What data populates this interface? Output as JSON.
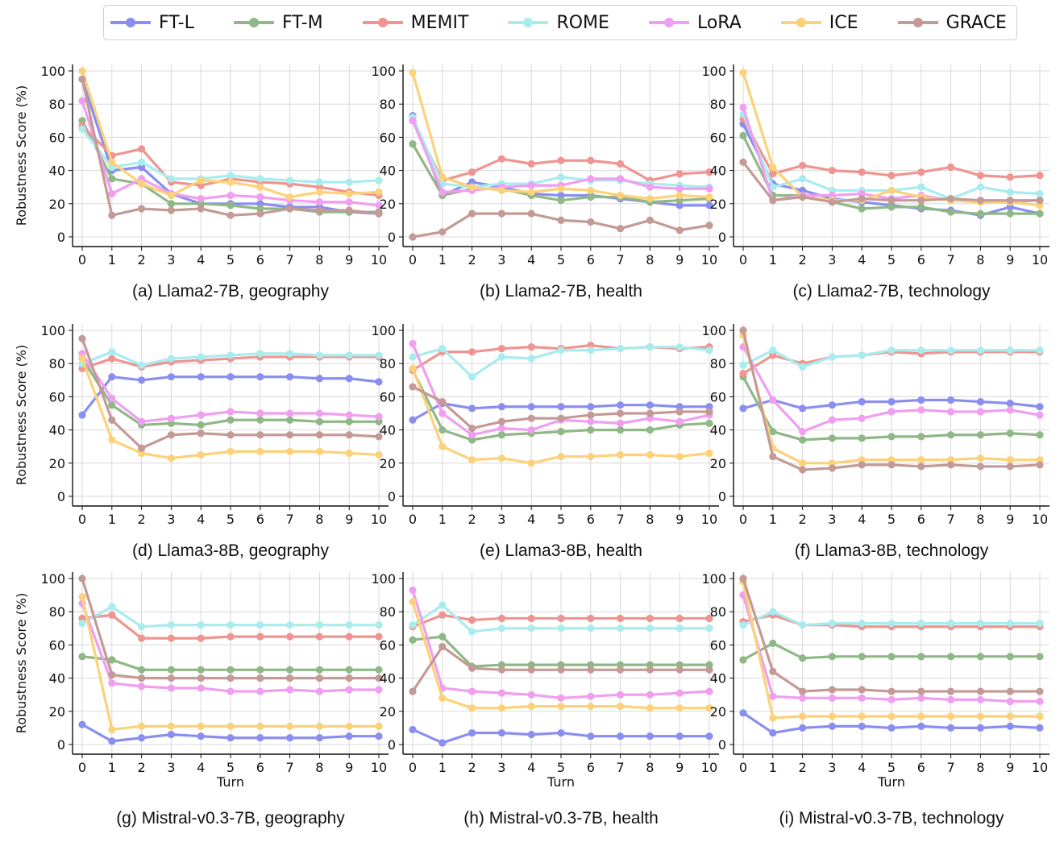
{
  "legend": [
    {
      "name": "FT-L",
      "color": "#8a8ef0"
    },
    {
      "name": "FT-M",
      "color": "#8fb886"
    },
    {
      "name": "MEMIT",
      "color": "#ef9490"
    },
    {
      "name": "ROME",
      "color": "#a8ecee"
    },
    {
      "name": "LoRA",
      "color": "#f09ef0"
    },
    {
      "name": "ICE",
      "color": "#fbd27a"
    },
    {
      "name": "GRACE",
      "color": "#c49a96"
    }
  ],
  "chart_data": [
    {
      "type": "line",
      "title": "(a) Llama2-7B, geography",
      "xlabel": "",
      "ylabel": "Robustness Score (%)",
      "x": [
        0,
        1,
        2,
        3,
        4,
        5,
        6,
        7,
        8,
        9,
        10
      ],
      "ylim": [
        0,
        100
      ],
      "series": [
        {
          "name": "FT-L",
          "values": [
            95,
            40,
            42,
            26,
            20,
            20,
            20,
            18,
            18,
            15,
            14
          ]
        },
        {
          "name": "FT-M",
          "values": [
            70,
            35,
            32,
            20,
            20,
            19,
            17,
            17,
            15,
            15,
            15
          ]
        },
        {
          "name": "MEMIT",
          "values": [
            67,
            49,
            53,
            33,
            31,
            35,
            33,
            32,
            30,
            27,
            25
          ]
        },
        {
          "name": "ROME",
          "values": [
            65,
            42,
            45,
            35,
            35,
            37,
            35,
            34,
            33,
            33,
            34
          ]
        },
        {
          "name": "LoRA",
          "values": [
            82,
            26,
            35,
            26,
            23,
            25,
            24,
            22,
            21,
            21,
            19
          ]
        },
        {
          "name": "ICE",
          "values": [
            100,
            45,
            32,
            25,
            34,
            33,
            30,
            24,
            27,
            26,
            27
          ]
        },
        {
          "name": "GRACE",
          "values": [
            95,
            13,
            17,
            16,
            17,
            13,
            14,
            17,
            16,
            16,
            14
          ]
        }
      ]
    },
    {
      "type": "line",
      "title": "(b) Llama2-7B, health",
      "xlabel": "",
      "ylabel": "",
      "x": [
        0,
        1,
        2,
        3,
        4,
        5,
        6,
        7,
        8,
        9,
        10
      ],
      "ylim": [
        0,
        100
      ],
      "series": [
        {
          "name": "FT-L",
          "values": [
            73,
            25,
            33,
            30,
            26,
            25,
            25,
            23,
            21,
            19,
            19
          ]
        },
        {
          "name": "FT-M",
          "values": [
            56,
            25,
            29,
            29,
            25,
            22,
            24,
            24,
            21,
            22,
            23
          ]
        },
        {
          "name": "MEMIT",
          "values": [
            70,
            34,
            39,
            47,
            44,
            46,
            46,
            44,
            34,
            38,
            39
          ]
        },
        {
          "name": "ROME",
          "values": [
            72,
            32,
            30,
            32,
            32,
            36,
            34,
            34,
            32,
            31,
            30
          ]
        },
        {
          "name": "LoRA",
          "values": [
            70,
            27,
            28,
            30,
            31,
            31,
            35,
            35,
            30,
            29,
            29
          ]
        },
        {
          "name": "ICE",
          "values": [
            99,
            36,
            30,
            28,
            27,
            29,
            28,
            25,
            23,
            25,
            24
          ]
        },
        {
          "name": "GRACE",
          "values": [
            0,
            3,
            14,
            14,
            14,
            10,
            9,
            5,
            10,
            4,
            7
          ]
        }
      ]
    },
    {
      "type": "line",
      "title": "(c) Llama2-7B, technology",
      "xlabel": "",
      "ylabel": "",
      "x": [
        0,
        1,
        2,
        3,
        4,
        5,
        6,
        7,
        8,
        9,
        10
      ],
      "ylim": [
        0,
        100
      ],
      "series": [
        {
          "name": "FT-L",
          "values": [
            68,
            32,
            28,
            23,
            21,
            19,
            17,
            16,
            13,
            18,
            14
          ]
        },
        {
          "name": "FT-M",
          "values": [
            61,
            25,
            25,
            21,
            17,
            18,
            18,
            15,
            14,
            14,
            14
          ]
        },
        {
          "name": "MEMIT",
          "values": [
            71,
            38,
            43,
            40,
            39,
            37,
            39,
            42,
            37,
            36,
            37
          ]
        },
        {
          "name": "ROME",
          "values": [
            74,
            30,
            35,
            28,
            28,
            28,
            30,
            23,
            30,
            27,
            26
          ]
        },
        {
          "name": "LoRA",
          "values": [
            78,
            22,
            25,
            25,
            26,
            23,
            25,
            22,
            21,
            21,
            22
          ]
        },
        {
          "name": "ICE",
          "values": [
            99,
            42,
            24,
            22,
            22,
            28,
            24,
            22,
            21,
            21,
            19
          ]
        },
        {
          "name": "GRACE",
          "values": [
            45,
            22,
            24,
            21,
            23,
            22,
            22,
            23,
            22,
            22,
            22
          ]
        }
      ]
    },
    {
      "type": "line",
      "title": "(d) Llama3-8B, geography",
      "xlabel": "",
      "ylabel": "Robustness Score (%)",
      "x": [
        0,
        1,
        2,
        3,
        4,
        5,
        6,
        7,
        8,
        9,
        10
      ],
      "ylim": [
        0,
        100
      ],
      "series": [
        {
          "name": "FT-L",
          "values": [
            49,
            72,
            70,
            72,
            72,
            72,
            72,
            72,
            71,
            71,
            69
          ]
        },
        {
          "name": "FT-M",
          "values": [
            83,
            55,
            43,
            44,
            43,
            46,
            46,
            46,
            45,
            45,
            45
          ]
        },
        {
          "name": "MEMIT",
          "values": [
            77,
            83,
            78,
            81,
            82,
            83,
            84,
            84,
            84,
            84,
            84
          ]
        },
        {
          "name": "ROME",
          "values": [
            80,
            87,
            79,
            83,
            84,
            85,
            86,
            86,
            85,
            85,
            85
          ]
        },
        {
          "name": "LoRA",
          "values": [
            86,
            59,
            45,
            47,
            49,
            51,
            50,
            50,
            50,
            49,
            48
          ]
        },
        {
          "name": "ICE",
          "values": [
            83,
            34,
            26,
            23,
            25,
            27,
            27,
            27,
            27,
            26,
            25
          ]
        },
        {
          "name": "GRACE",
          "values": [
            95,
            46,
            29,
            37,
            38,
            37,
            37,
            37,
            37,
            37,
            36
          ]
        }
      ]
    },
    {
      "type": "line",
      "title": "(e) Llama3-8B, health",
      "xlabel": "",
      "ylabel": "",
      "x": [
        0,
        1,
        2,
        3,
        4,
        5,
        6,
        7,
        8,
        9,
        10
      ],
      "ylim": [
        0,
        100
      ],
      "series": [
        {
          "name": "FT-L",
          "values": [
            46,
            56,
            53,
            54,
            54,
            54,
            54,
            55,
            55,
            54,
            54
          ]
        },
        {
          "name": "FT-M",
          "values": [
            76,
            40,
            34,
            37,
            38,
            39,
            40,
            40,
            40,
            43,
            44
          ]
        },
        {
          "name": "MEMIT",
          "values": [
            76,
            87,
            87,
            89,
            90,
            89,
            91,
            89,
            90,
            89,
            90
          ]
        },
        {
          "name": "ROME",
          "values": [
            84,
            89,
            72,
            84,
            83,
            88,
            88,
            89,
            90,
            90,
            88
          ]
        },
        {
          "name": "LoRA",
          "values": [
            92,
            50,
            37,
            41,
            40,
            46,
            45,
            44,
            47,
            45,
            49
          ]
        },
        {
          "name": "ICE",
          "values": [
            77,
            30,
            22,
            23,
            20,
            24,
            24,
            25,
            25,
            24,
            26
          ]
        },
        {
          "name": "GRACE",
          "values": [
            66,
            57,
            41,
            45,
            47,
            47,
            49,
            50,
            50,
            51,
            51
          ]
        }
      ]
    },
    {
      "type": "line",
      "title": "(f) Llama3-8B, technology",
      "xlabel": "",
      "ylabel": "",
      "x": [
        0,
        1,
        2,
        3,
        4,
        5,
        6,
        7,
        8,
        9,
        10
      ],
      "ylim": [
        0,
        100
      ],
      "series": [
        {
          "name": "FT-L",
          "values": [
            53,
            58,
            53,
            55,
            57,
            57,
            58,
            58,
            57,
            56,
            54
          ]
        },
        {
          "name": "FT-M",
          "values": [
            72,
            39,
            34,
            35,
            35,
            36,
            36,
            37,
            37,
            38,
            37
          ]
        },
        {
          "name": "MEMIT",
          "values": [
            74,
            85,
            80,
            84,
            85,
            87,
            86,
            87,
            87,
            87,
            87
          ]
        },
        {
          "name": "ROME",
          "values": [
            79,
            88,
            78,
            84,
            85,
            88,
            88,
            88,
            88,
            88,
            88
          ]
        },
        {
          "name": "LoRA",
          "values": [
            90,
            58,
            39,
            46,
            47,
            51,
            52,
            51,
            51,
            52,
            49
          ]
        },
        {
          "name": "ICE",
          "values": [
            97,
            29,
            20,
            20,
            22,
            22,
            22,
            22,
            23,
            22,
            22
          ]
        },
        {
          "name": "GRACE",
          "values": [
            100,
            24,
            16,
            17,
            19,
            19,
            18,
            19,
            18,
            18,
            19
          ]
        }
      ]
    },
    {
      "type": "line",
      "title": "(g) Mistral-v0.3-7B, geography",
      "xlabel": "Turn",
      "ylabel": "Robustness Score (%)",
      "x": [
        0,
        1,
        2,
        3,
        4,
        5,
        6,
        7,
        8,
        9,
        10
      ],
      "ylim": [
        0,
        100
      ],
      "series": [
        {
          "name": "FT-L",
          "values": [
            12,
            2,
            4,
            6,
            5,
            4,
            4,
            4,
            4,
            5,
            5
          ]
        },
        {
          "name": "FT-M",
          "values": [
            53,
            51,
            45,
            45,
            45,
            45,
            45,
            45,
            45,
            45,
            45
          ]
        },
        {
          "name": "MEMIT",
          "values": [
            76,
            78,
            64,
            64,
            64,
            65,
            65,
            65,
            65,
            65,
            65
          ]
        },
        {
          "name": "ROME",
          "values": [
            73,
            83,
            71,
            72,
            72,
            72,
            72,
            72,
            72,
            72,
            72
          ]
        },
        {
          "name": "LoRA",
          "values": [
            85,
            37,
            35,
            34,
            34,
            32,
            32,
            33,
            32,
            33,
            33
          ]
        },
        {
          "name": "ICE",
          "values": [
            89,
            9,
            11,
            11,
            11,
            11,
            11,
            11,
            11,
            11,
            11
          ]
        },
        {
          "name": "GRACE",
          "values": [
            100,
            42,
            40,
            40,
            40,
            40,
            40,
            40,
            40,
            40,
            40
          ]
        }
      ]
    },
    {
      "type": "line",
      "title": "(h) Mistral-v0.3-7B, health",
      "xlabel": "Turn",
      "ylabel": "",
      "x": [
        0,
        1,
        2,
        3,
        4,
        5,
        6,
        7,
        8,
        9,
        10
      ],
      "ylim": [
        0,
        100
      ],
      "series": [
        {
          "name": "FT-L",
          "values": [
            9,
            1,
            7,
            7,
            6,
            7,
            5,
            5,
            5,
            5,
            5
          ]
        },
        {
          "name": "FT-M",
          "values": [
            63,
            65,
            47,
            48,
            48,
            48,
            48,
            48,
            48,
            48,
            48
          ]
        },
        {
          "name": "MEMIT",
          "values": [
            71,
            78,
            75,
            76,
            76,
            76,
            76,
            76,
            76,
            76,
            76
          ]
        },
        {
          "name": "ROME",
          "values": [
            72,
            84,
            68,
            70,
            70,
            70,
            70,
            70,
            70,
            70,
            70
          ]
        },
        {
          "name": "LoRA",
          "values": [
            93,
            34,
            32,
            31,
            30,
            28,
            29,
            30,
            30,
            31,
            32
          ]
        },
        {
          "name": "ICE",
          "values": [
            86,
            28,
            22,
            22,
            23,
            23,
            23,
            23,
            22,
            22,
            22
          ]
        },
        {
          "name": "GRACE",
          "values": [
            32,
            59,
            46,
            45,
            45,
            45,
            45,
            45,
            45,
            45,
            45
          ]
        }
      ]
    },
    {
      "type": "line",
      "title": "(i) Mistral-v0.3-7B, technology",
      "xlabel": "Turn",
      "ylabel": "",
      "x": [
        0,
        1,
        2,
        3,
        4,
        5,
        6,
        7,
        8,
        9,
        10
      ],
      "ylim": [
        0,
        100
      ],
      "series": [
        {
          "name": "FT-L",
          "values": [
            19,
            7,
            10,
            11,
            11,
            10,
            11,
            10,
            10,
            11,
            10
          ]
        },
        {
          "name": "FT-M",
          "values": [
            51,
            61,
            52,
            53,
            53,
            53,
            53,
            53,
            53,
            53,
            53
          ]
        },
        {
          "name": "MEMIT",
          "values": [
            74,
            78,
            72,
            72,
            71,
            71,
            71,
            71,
            71,
            71,
            71
          ]
        },
        {
          "name": "ROME",
          "values": [
            72,
            80,
            72,
            73,
            73,
            73,
            73,
            73,
            73,
            73,
            73
          ]
        },
        {
          "name": "LoRA",
          "values": [
            90,
            29,
            28,
            28,
            28,
            27,
            28,
            27,
            27,
            26,
            26
          ]
        },
        {
          "name": "ICE",
          "values": [
            98,
            16,
            17,
            17,
            17,
            17,
            17,
            17,
            17,
            17,
            17
          ]
        },
        {
          "name": "GRACE",
          "values": [
            100,
            44,
            32,
            33,
            33,
            32,
            32,
            32,
            32,
            32,
            32
          ]
        }
      ]
    }
  ],
  "y_ticks": [
    0,
    20,
    40,
    60,
    80,
    100
  ],
  "x_ticks": [
    0,
    1,
    2,
    3,
    4,
    5,
    6,
    7,
    8,
    9,
    10
  ]
}
